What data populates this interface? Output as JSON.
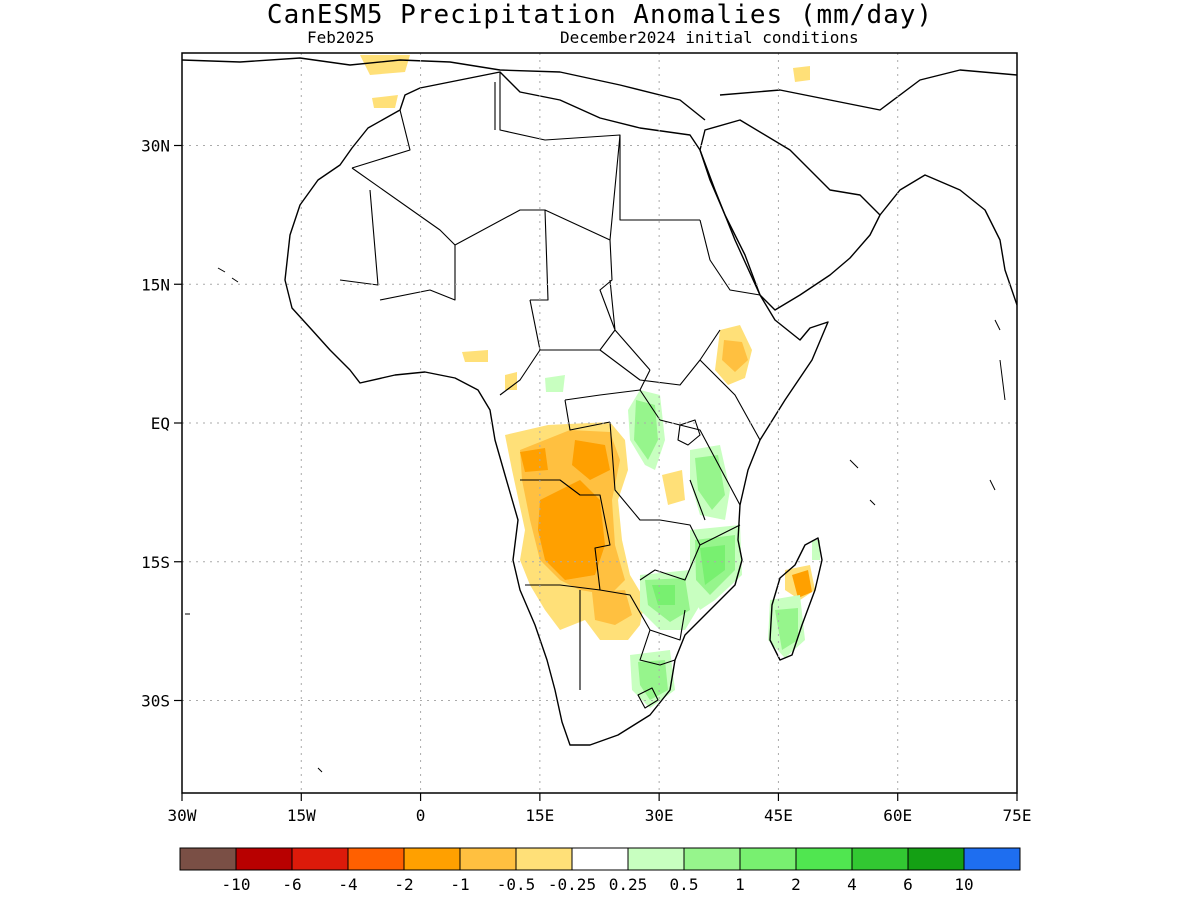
{
  "title": "CanESM5 Precipitation Anomalies (mm/day)",
  "valid_month": "Feb2025",
  "init_conditions": "December2024 initial conditions",
  "lat_labels": [
    "30N",
    "15N",
    "EQ",
    "15S",
    "30S"
  ],
  "lat_values": [
    30,
    15,
    0,
    -15,
    -30
  ],
  "lon_labels": [
    "30W",
    "15W",
    "0",
    "15E",
    "30E",
    "45E",
    "60E",
    "75E"
  ],
  "lon_values": [
    -30,
    -15,
    0,
    15,
    30,
    45,
    60,
    75
  ],
  "extent": {
    "lon_min": -30,
    "lon_max": 75,
    "lat_min": -40,
    "lat_max": 40
  },
  "colorbar": {
    "colors": [
      "#7a4f45",
      "#b80000",
      "#dd1a0a",
      "#ff6000",
      "#ffa000",
      "#ffc040",
      "#ffe078",
      "#ffffff",
      "#c8ffc0",
      "#96f58c",
      "#78f070",
      "#50e650",
      "#32c832",
      "#14a014",
      "#1e6ef0"
    ],
    "labels": [
      "-10",
      "-6",
      "-4",
      "-2",
      "-1",
      "-0.5",
      "-0.25",
      "0.25",
      "0.5",
      "1",
      "2",
      "4",
      "6",
      "10"
    ]
  },
  "anomaly_colors": {
    "dry_light": "#ffe078",
    "dry_mid": "#ffc040",
    "dry_strong": "#ffa000",
    "wet_light": "#c8ffc0",
    "wet_mid": "#96f58c",
    "wet_strong": "#78f070"
  }
}
